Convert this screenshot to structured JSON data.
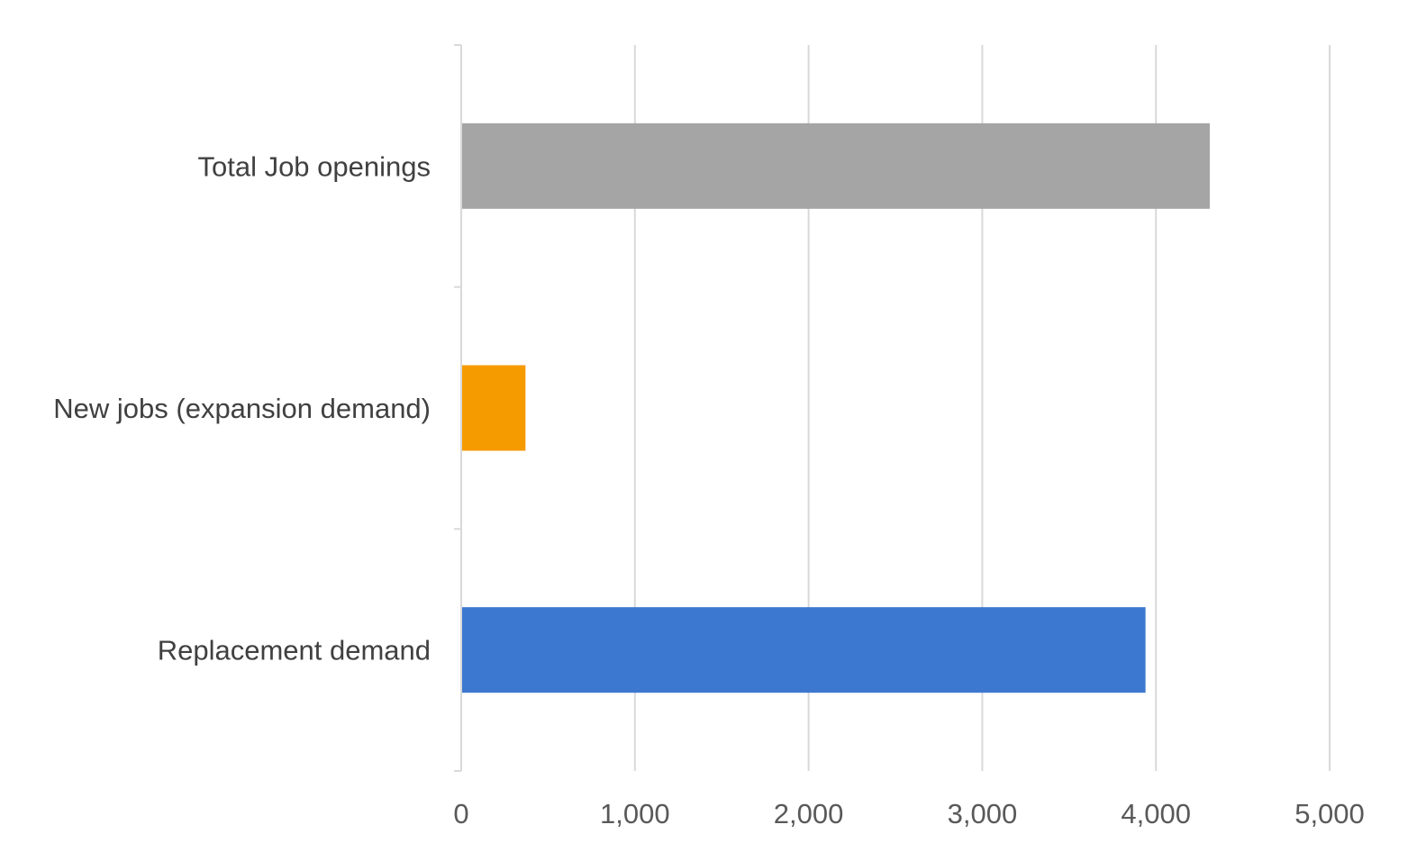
{
  "chart_data": {
    "type": "bar",
    "orientation": "horizontal",
    "categories": [
      "Total Job openings",
      "New jobs (expansion demand)",
      "Replacement demand"
    ],
    "values": [
      4310,
      370,
      3940
    ],
    "colors": [
      "#A5A5A5",
      "#F59B00",
      "#3C78CF"
    ],
    "title": "",
    "xlabel": "",
    "ylabel": "",
    "xlim": [
      0,
      5000
    ],
    "xticks": [
      0,
      1000,
      2000,
      3000,
      4000,
      5000
    ],
    "xtick_labels": [
      "0",
      "1,000",
      "2,000",
      "3,000",
      "4,000",
      "5,000"
    ],
    "grid": "vertical",
    "grid_color": "#D9D9D9",
    "legend": "none"
  }
}
